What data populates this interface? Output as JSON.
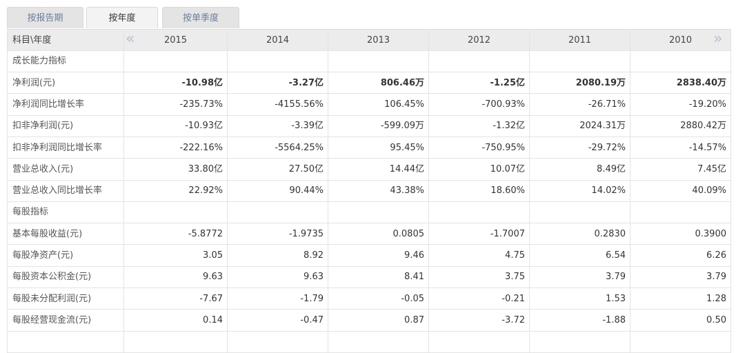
{
  "tabs": [
    "按报告期",
    "按年度",
    "按单季度"
  ],
  "active_tab": 1,
  "table": {
    "header": [
      "科目\\年度",
      "2015",
      "2014",
      "2013",
      "2012",
      "2011",
      "2010"
    ],
    "rows": [
      {
        "label": "成长能力指标"
      },
      {
        "label": "净利润(元)",
        "emphasis": true,
        "values": [
          "-10.98亿",
          "-3.27亿",
          "806.46万",
          "-1.25亿",
          "2080.19万",
          "2838.40万"
        ]
      },
      {
        "label": "净利润同比增长率",
        "values": [
          "-235.73%",
          "-4155.56%",
          "106.45%",
          "-700.93%",
          "-26.71%",
          "-19.20%"
        ]
      },
      {
        "label": "扣非净利润(元)",
        "values": [
          "-10.93亿",
          "-3.39亿",
          "-599.09万",
          "-1.32亿",
          "2024.31万",
          "2880.42万"
        ]
      },
      {
        "label": "扣非净利润同比增长率",
        "values": [
          "-222.16%",
          "-5564.25%",
          "95.45%",
          "-750.95%",
          "-29.72%",
          "-14.57%"
        ]
      },
      {
        "label": "营业总收入(元)",
        "values": [
          "33.80亿",
          "27.50亿",
          "14.44亿",
          "10.07亿",
          "8.49亿",
          "7.45亿"
        ]
      },
      {
        "label": "营业总收入同比增长率",
        "values": [
          "22.92%",
          "90.44%",
          "43.38%",
          "18.60%",
          "14.02%",
          "40.09%"
        ]
      },
      {
        "label": "每股指标"
      },
      {
        "label": "基本每股收益(元)",
        "values": [
          "-5.8772",
          "-1.9735",
          "0.0805",
          "-1.7007",
          "0.2830",
          "0.3900"
        ]
      },
      {
        "label": "每股净资产(元)",
        "values": [
          "3.05",
          "8.92",
          "9.46",
          "4.75",
          "6.54",
          "6.26"
        ]
      },
      {
        "label": "每股资本公积金(元)",
        "values": [
          "9.63",
          "9.63",
          "8.41",
          "3.75",
          "3.79",
          "3.79"
        ]
      },
      {
        "label": "每股未分配利润(元)",
        "values": [
          "-7.67",
          "-1.79",
          "-0.05",
          "-0.21",
          "1.53",
          "1.28"
        ]
      },
      {
        "label": "每股经营现金流(元)",
        "values": [
          "0.14",
          "-0.47",
          "0.87",
          "-3.72",
          "-1.88",
          "0.50"
        ]
      }
    ]
  }
}
